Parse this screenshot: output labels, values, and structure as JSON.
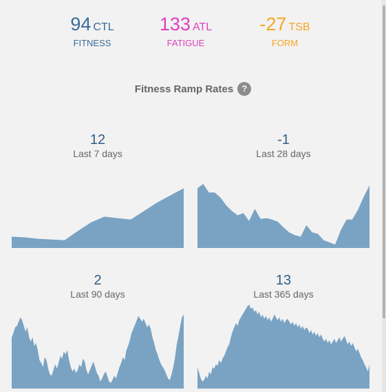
{
  "metrics": {
    "ctl": {
      "value": "94",
      "abbr": "CTL",
      "label": "FITNESS",
      "color": "#3a6c9a"
    },
    "atl": {
      "value": "133",
      "abbr": "ATL",
      "label": "FATIGUE",
      "color": "#e040c0"
    },
    "tsb": {
      "value": "-27",
      "abbr": "TSB",
      "label": "FORM",
      "color": "#f5a623"
    }
  },
  "ramp": {
    "title": "Fitness Ramp Rates",
    "help_icon": "question-circle-icon",
    "fill_color": "#7aa3c3",
    "panels": [
      {
        "value": "12",
        "period": "Last 7 days",
        "chart_data": {
          "type": "area",
          "values": [
            16,
            15,
            13,
            12,
            11,
            24,
            36,
            44,
            42,
            40,
            52,
            64,
            74,
            84
          ]
        }
      },
      {
        "value": "-1",
        "period": "Last 28 days",
        "chart_data": {
          "type": "area",
          "values": [
            84,
            90,
            78,
            78,
            71,
            60,
            52,
            46,
            49,
            38,
            55,
            41,
            42,
            40,
            37,
            29,
            22,
            18,
            16,
            32,
            22,
            20,
            11,
            8,
            5,
            25,
            40,
            40,
            54,
            72,
            88
          ]
        }
      },
      {
        "value": "2",
        "period": "Last 90 days",
        "chart_data": {
          "type": "area",
          "values": [
            72,
            78,
            86,
            88,
            94,
            100,
            96,
            88,
            80,
            86,
            72,
            66,
            72,
            60,
            64,
            54,
            40,
            36,
            30,
            44,
            40,
            28,
            20,
            18,
            26,
            34,
            28,
            36,
            46,
            42,
            52,
            48,
            54,
            40,
            30,
            24,
            28,
            22,
            26,
            34,
            30,
            42,
            38,
            26,
            20,
            26,
            32,
            38,
            30,
            22,
            18,
            10,
            14,
            20,
            24,
            18,
            10,
            8,
            12,
            18,
            14,
            22,
            30,
            36,
            44,
            40,
            54,
            60,
            68,
            78,
            84,
            90,
            96,
            102,
            98,
            94,
            98,
            92,
            86,
            90,
            84,
            72,
            64,
            54,
            48,
            40,
            34,
            30,
            26,
            20,
            14,
            12,
            20,
            30,
            44,
            62,
            74,
            88,
            100,
            104
          ]
        }
      },
      {
        "value": "13",
        "period": "Last 365 days",
        "chart_data": {
          "type": "area",
          "values": [
            30,
            22,
            14,
            10,
            12,
            18,
            14,
            24,
            20,
            30,
            28,
            34,
            32,
            40,
            36,
            42,
            46,
            52,
            58,
            62,
            72,
            80,
            86,
            92,
            88,
            96,
            100,
            104,
            108,
            112,
            116,
            118,
            112,
            114,
            108,
            110,
            104,
            108,
            100,
            104,
            98,
            102,
            96,
            100,
            94,
            98,
            104,
            100,
            96,
            100,
            94,
            98,
            92,
            96,
            98,
            94,
            90,
            94,
            88,
            92,
            86,
            90,
            84,
            88,
            82,
            86,
            84,
            78,
            82,
            76,
            80,
            74,
            78,
            72,
            76,
            70,
            66,
            70,
            64,
            68,
            62,
            66,
            70,
            64,
            68,
            72,
            66,
            70,
            74,
            68,
            62,
            66,
            60,
            64,
            58,
            52,
            56,
            50,
            44,
            40,
            34,
            30,
            24,
            34
          ]
        }
      }
    ]
  }
}
